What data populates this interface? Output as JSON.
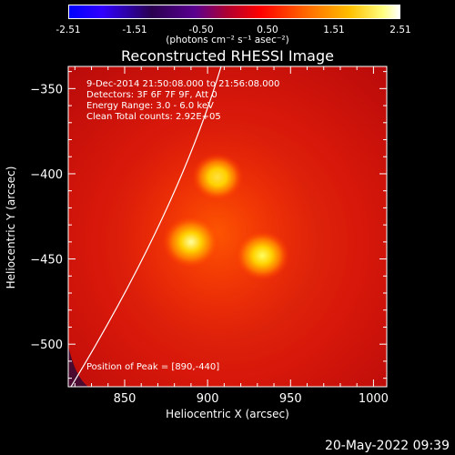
{
  "colorbar": {
    "ticks": [
      "-2.51",
      "-1.51",
      "-0.50",
      "0.50",
      "1.51",
      "2.51"
    ],
    "units_text": "(photons cm⁻² s⁻¹ asec⁻²)",
    "min": -2.51,
    "max": 2.51
  },
  "chart_data": {
    "type": "heatmap",
    "title": "Reconstructed RHESSI Image",
    "xlabel": "Heliocentric X (arcsec)",
    "ylabel": "Heliocentric Y (arcsec)",
    "xlim": [
      816,
      1008
    ],
    "ylim": [
      -525,
      -337
    ],
    "xticks": [
      850,
      900,
      950,
      1000
    ],
    "yticks": [
      -350,
      -400,
      -450,
      -500
    ],
    "colormap": "hot",
    "sources": [
      {
        "x": 890,
        "y": -440,
        "peak": 2.51
      },
      {
        "x": 933,
        "y": -448,
        "peak": 2.2
      },
      {
        "x": 906,
        "y": -402,
        "peak": 1.9
      }
    ],
    "annotations": {
      "time": "9-Dec-2014 21:50:08.000 to 21:56:08.000",
      "detectors": "Detectors: 3F 6F 7F 9F, Att 0",
      "energy": "Energy Range: 3.0 - 6.0 keV",
      "method": "Clean     Total counts: 2.92E+05",
      "peak": "Position of Peak = [890,-440]"
    }
  },
  "footer_date": "20-May-2022 09:39"
}
